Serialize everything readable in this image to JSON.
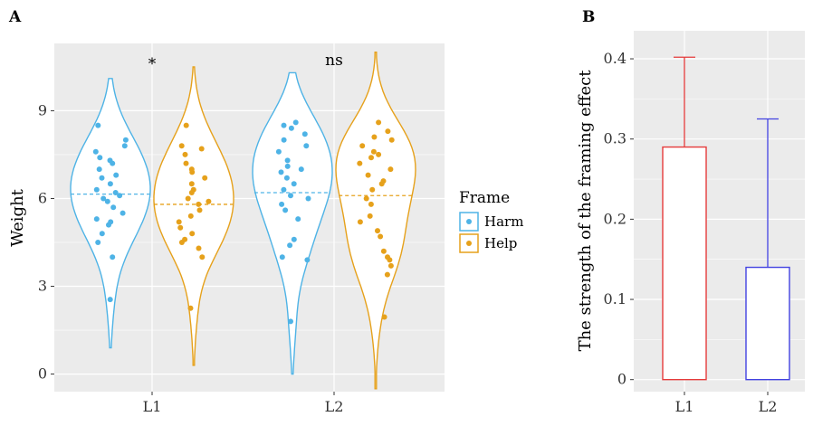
{
  "colors": {
    "panel_bg": "#ebebeb",
    "grid": "#ffffff",
    "harm": "#4eb3e6",
    "help": "#e6a11b",
    "bar_L1": "#e53b3b",
    "bar_L2": "#4242e0"
  },
  "chart_data": [
    {
      "type": "violin",
      "panel_label": "A",
      "xlabel": "",
      "ylabel": "Weight",
      "categories": [
        "L1",
        "L2"
      ],
      "ylim": [
        -0.6,
        11.3
      ],
      "yticks": [
        0,
        3,
        6,
        9
      ],
      "grid": true,
      "significance": [
        "*",
        "ns"
      ],
      "legend": {
        "title": "Frame",
        "position": "right",
        "entries": [
          "Harm",
          "Help"
        ]
      },
      "series": [
        {
          "name": "Harm",
          "medians": [
            6.15,
            6.2
          ],
          "ranges": [
            [
              0.9,
              10.1
            ],
            [
              0.0,
              10.3
            ]
          ],
          "points": [
            [
              2.55,
              4.0,
              4.5,
              4.8,
              5.1,
              5.2,
              5.3,
              5.5,
              5.7,
              5.9,
              6.0,
              6.1,
              6.2,
              6.3,
              6.5,
              6.7,
              6.8,
              7.0,
              7.2,
              7.3,
              7.4,
              7.6,
              7.8,
              8.0,
              8.5
            ],
            [
              1.8,
              3.9,
              4.0,
              4.4,
              4.6,
              5.3,
              5.6,
              5.8,
              6.0,
              6.1,
              6.3,
              6.5,
              6.7,
              6.9,
              7.0,
              7.1,
              7.3,
              7.6,
              7.8,
              8.0,
              8.2,
              8.4,
              8.5,
              8.6
            ]
          ]
        },
        {
          "name": "Help",
          "medians": [
            5.8,
            6.1
          ],
          "ranges": [
            [
              0.3,
              10.5
            ],
            [
              -0.5,
              11.0
            ]
          ],
          "points": [
            [
              2.25,
              4.0,
              4.3,
              4.5,
              4.6,
              4.8,
              5.0,
              5.2,
              5.4,
              5.6,
              5.8,
              5.9,
              6.0,
              6.2,
              6.3,
              6.5,
              6.7,
              6.9,
              7.0,
              7.2,
              7.5,
              7.7,
              7.8,
              8.5
            ],
            [
              1.95,
              3.4,
              3.7,
              3.9,
              4.0,
              4.2,
              4.7,
              4.9,
              5.2,
              5.4,
              5.8,
              6.0,
              6.3,
              6.5,
              6.6,
              6.8,
              7.0,
              7.2,
              7.4,
              7.5,
              7.6,
              7.8,
              8.0,
              8.1,
              8.3,
              8.6
            ]
          ]
        }
      ]
    },
    {
      "type": "bar",
      "panel_label": "B",
      "xlabel": "",
      "ylabel": "The strength of the framing effect",
      "categories": [
        "L1",
        "L2"
      ],
      "values": [
        0.29,
        0.14
      ],
      "error_upper": [
        0.402,
        0.325
      ],
      "ylim": [
        -0.015,
        0.435
      ],
      "yticks": [
        0,
        0.1,
        0.2,
        0.3,
        0.4
      ],
      "grid": true
    }
  ]
}
